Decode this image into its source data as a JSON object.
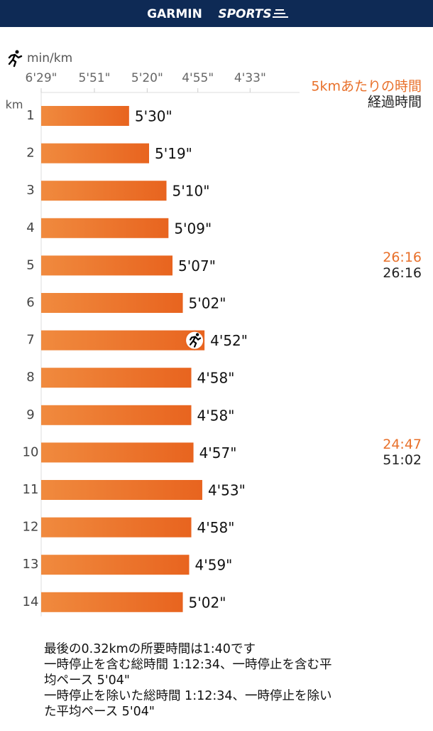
{
  "header": {
    "brand": "GARMIN",
    "product": "SPORTS"
  },
  "chart_data": {
    "type": "bar",
    "orientation": "horizontal",
    "scale": "reciprocal",
    "unit_label": "min/km",
    "category_axis_label": "km",
    "categories": [
      "1",
      "2",
      "3",
      "4",
      "5",
      "6",
      "7",
      "8",
      "9",
      "10",
      "11",
      "12",
      "13",
      "14"
    ],
    "values": [
      330,
      319,
      310,
      309,
      307,
      302,
      292,
      298,
      298,
      297,
      293,
      298,
      299,
      302
    ],
    "value_labels": [
      "5'30\"",
      "5'19\"",
      "5'10\"",
      "5'09\"",
      "5'07\"",
      "5'02\"",
      "4'52\"",
      "4'58\"",
      "4'58\"",
      "4'57\"",
      "4'53\"",
      "4'58\"",
      "4'59\"",
      "5'02\""
    ],
    "color": "#ec6f2c",
    "xlim": [
      389,
      255
    ],
    "xticks": [
      {
        "value": 389,
        "label": "6'29\""
      },
      {
        "value": 351,
        "label": "5'51\""
      },
      {
        "value": 320,
        "label": "5'20\""
      },
      {
        "value": 295,
        "label": "4'55\""
      },
      {
        "value": 273,
        "label": "4'33\""
      }
    ],
    "splits": {
      "title": "5kmあたりの時間",
      "elapsed_title": "経過時間",
      "segment": [
        "26:16",
        "24:47"
      ],
      "elapsed": [
        "26:16",
        "51:02"
      ]
    }
  },
  "notes": [
    "最後の0.32kmの所要時間は1:40です",
    "一時停止を含む総時間 1:12:34、一時停止を含む平",
    "均ペース 5'04\"",
    "一時停止を除いた総時間 1:12:34、一時停止を除い",
    "た平均ペース 5'04\""
  ]
}
